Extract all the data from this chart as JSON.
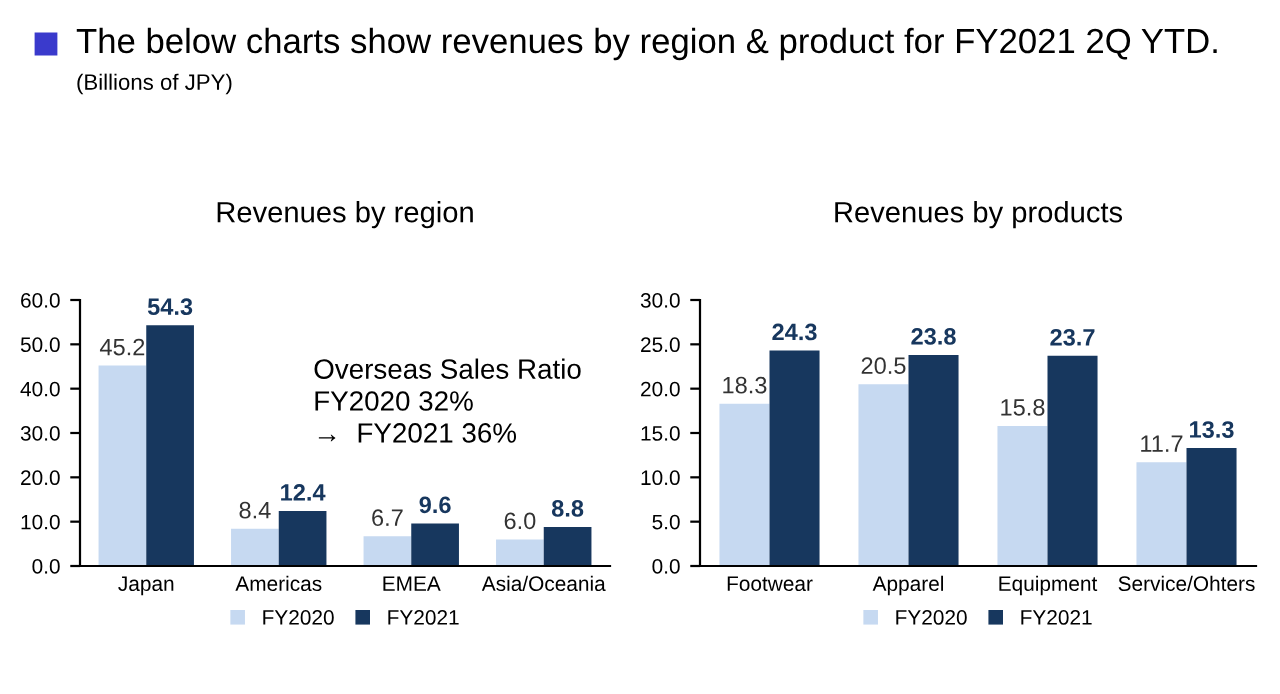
{
  "chart_data": [
    {
      "type": "bar",
      "title": "Revenues by region",
      "categories": [
        "Japan",
        "Americas",
        "EMEA",
        "Asia/Oceania"
      ],
      "series": [
        {
          "name": "FY2020",
          "color": "#c6d9f1",
          "values": [
            45.2,
            8.4,
            6.7,
            6.0
          ],
          "value_labels": [
            "45.2",
            "8.4",
            "6.7",
            "6.0"
          ]
        },
        {
          "name": "FY2021",
          "color": "#17375e",
          "values": [
            54.3,
            12.4,
            9.6,
            8.8
          ],
          "value_labels": [
            "54.3",
            "12.4",
            "9.6",
            "8.8"
          ]
        }
      ],
      "ylim": [
        0,
        60
      ],
      "yticks": [
        {
          "value": 0,
          "label": "0.0"
        },
        {
          "value": 10,
          "label": "10.0"
        },
        {
          "value": 20,
          "label": "20.0"
        },
        {
          "value": 30,
          "label": "30.0"
        },
        {
          "value": 40,
          "label": "40.0"
        },
        {
          "value": 50,
          "label": "50.0"
        },
        {
          "value": 60,
          "label": "60.0"
        }
      ],
      "legend": "bottom",
      "grid": false,
      "annotations": [
        "The below charts show revenues by region & product for FY2021 2Q YTD.",
        "(Billions of JPY)",
        "Overseas Sales Ratio\nFY2020 32%\n→  FY2021 36%"
      ]
    },
    {
      "type": "bar",
      "title": "Revenues by products",
      "categories": [
        "Footwear",
        "Apparel",
        "Equipment",
        "Service/Ohters"
      ],
      "series": [
        {
          "name": "FY2020",
          "color": "#c6d9f1",
          "values": [
            18.3,
            20.5,
            15.8,
            11.7
          ]
        },
        {
          "name": "FY2021",
          "color": "#17375e",
          "values": [
            24.3,
            23.8,
            23.7,
            13.3
          ]
        }
      ],
      "ylim": [
        0,
        30
      ],
      "yticks": [
        {
          "value": 0,
          "label": "0.0"
        },
        {
          "value": 5,
          "label": "5.0"
        },
        {
          "value": 10,
          "label": "10.0"
        },
        {
          "value": 15,
          "label": "15.0"
        },
        {
          "value": 20,
          "label": "20.0"
        },
        {
          "value": 25,
          "label": "25.0"
        },
        {
          "value": 30,
          "label": "30.0"
        }
      ],
      "data_labels": true,
      "legend": "bottom",
      "grid": false
    }
  ]
}
